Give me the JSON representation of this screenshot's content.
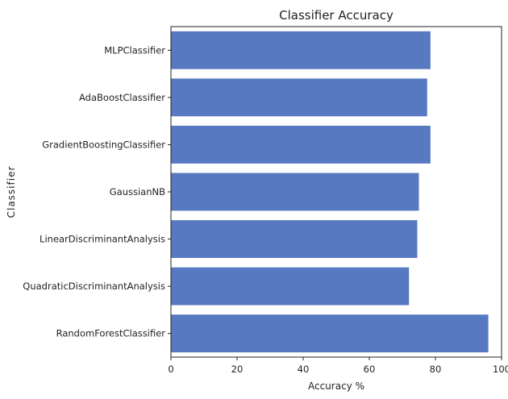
{
  "chart_data": {
    "type": "bar",
    "orientation": "horizontal",
    "title": "Classifier Accuracy",
    "xlabel": "Accuracy %",
    "ylabel": "Classifier",
    "categories": [
      "MLPClassifier",
      "AdaBoostClassifier",
      "GradientBoostingClassifier",
      "GaussianNB",
      "LinearDiscriminantAnalysis",
      "QuadraticDiscriminantAnalysis",
      "RandomForestClassifier"
    ],
    "values": [
      78.5,
      77.5,
      78.5,
      75,
      74.5,
      72,
      96
    ],
    "xlim": [
      0,
      100
    ],
    "xticks": [
      0,
      20,
      40,
      60,
      80,
      100
    ],
    "grid": false,
    "bar_color": "#5779c1"
  }
}
